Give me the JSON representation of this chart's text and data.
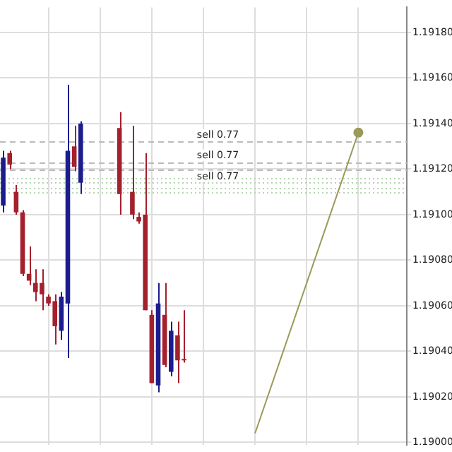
{
  "chart_data": {
    "type": "candlestick",
    "categories": [
      null,
      null,
      null,
      null,
      null,
      null,
      null,
      null,
      null,
      null,
      null,
      null,
      null,
      null,
      null,
      null,
      null,
      null,
      null,
      null,
      null,
      null,
      null,
      null,
      null,
      null,
      null,
      null,
      null,
      null,
      null,
      null,
      null,
      null,
      null,
      null,
      null,
      null,
      null,
      null,
      null,
      null,
      null,
      null,
      null,
      null,
      null,
      null,
      null,
      null,
      null,
      null,
      null,
      null,
      null,
      null,
      null,
      null,
      null,
      null,
      null,
      null,
      null
    ],
    "ohlc": [
      [
        1.19104,
        1.19128,
        1.19101,
        1.19125
      ],
      [
        1.19127,
        1.19128,
        1.1912,
        1.19122
      ],
      [
        1.1911,
        1.19113,
        1.191,
        1.19101
      ],
      [
        1.19101,
        1.19102,
        1.19073,
        1.19074
      ],
      [
        1.19074,
        1.19086,
        1.19069,
        1.19071
      ],
      [
        1.1907,
        1.19076,
        1.19062,
        1.19066
      ],
      [
        1.1907,
        1.19076,
        1.19058,
        1.19065
      ],
      [
        1.19064,
        1.19065,
        1.1906,
        1.19061
      ],
      [
        1.19062,
        1.19065,
        1.19043,
        1.19051
      ],
      [
        1.19049,
        1.19066,
        1.19045,
        1.19064
      ],
      [
        1.19061,
        1.19157,
        1.19037,
        1.19128
      ],
      [
        1.1913,
        1.19139,
        1.19119,
        1.19121
      ],
      [
        1.19114,
        1.19141,
        1.19109,
        1.1914
      ],
      null,
      null,
      null,
      null,
      null,
      [
        1.19138,
        1.19145,
        1.191,
        1.19109
      ],
      null,
      [
        1.1911,
        1.19139,
        1.19098,
        1.191
      ],
      [
        1.19099,
        1.19101,
        1.19096,
        1.19097
      ],
      [
        1.191,
        1.19127,
        1.19058,
        1.19058
      ],
      [
        1.19056,
        1.19058,
        1.19026,
        1.19026
      ],
      [
        1.19025,
        1.1907,
        1.19022,
        1.19061
      ],
      [
        1.19056,
        1.1907,
        1.19033,
        1.19034
      ],
      [
        1.19031,
        1.19053,
        1.19029,
        1.19049
      ],
      [
        1.19047,
        1.19053,
        1.19026,
        1.19036
      ],
      [
        1.19036,
        1.19058,
        1.19035,
        1.19036
      ],
      null,
      null,
      null,
      null,
      null,
      null,
      null,
      null,
      null,
      null,
      null,
      null,
      null,
      null,
      null,
      null,
      null,
      null,
      null,
      null,
      null,
      null,
      null,
      null,
      null,
      null,
      null,
      null,
      null,
      null,
      null,
      null,
      null,
      null
    ],
    "colors": [
      "#1c1c8e",
      "#a3202c",
      "#a3202c",
      "#a3202c",
      "#a3202c",
      "#a3202c",
      "#a3202c",
      "#a3202c",
      "#a3202c",
      "#1c1c8e",
      "#1c1c8e",
      "#a3202c",
      "#1c1c8e",
      null,
      null,
      null,
      null,
      null,
      "#a3202c",
      null,
      "#a3202c",
      "#a3202c",
      "#a3202c",
      "#a3202c",
      "#1c1c8e",
      "#a3202c",
      "#1c1c8e",
      "#a3202c",
      "#a3202c",
      null,
      null,
      null,
      null,
      null,
      null,
      null,
      null,
      null,
      null,
      null,
      null,
      null,
      null,
      null,
      null,
      null,
      null,
      null,
      null,
      null,
      null,
      null,
      null,
      null,
      null,
      null,
      null,
      null,
      null,
      null,
      null,
      null,
      null
    ],
    "series": [
      {
        "type": "line",
        "color": "#9a9a5a",
        "values": [
          null,
          null,
          null,
          null,
          null,
          null,
          null,
          null,
          null,
          null,
          null,
          null,
          null,
          null,
          null,
          null,
          null,
          null,
          null,
          null,
          null,
          null,
          null,
          null,
          null,
          null,
          null,
          null,
          null,
          null,
          null,
          null,
          null,
          null,
          null,
          null,
          null,
          null,
          null,
          1.19004,
          null,
          null,
          null,
          null,
          null,
          null,
          null,
          null,
          null,
          null,
          null,
          null,
          null,
          null,
          null,
          1.19136,
          null,
          null,
          null,
          null,
          null,
          null,
          null
        ]
      }
    ],
    "ylim": [
      1.18999,
      1.19191
    ],
    "yticks": [
      {
        "value": 1.19,
        "label": "1.19000"
      },
      {
        "value": 1.1902,
        "label": "1.19020"
      },
      {
        "value": 1.1904,
        "label": "1.19040"
      },
      {
        "value": 1.1906,
        "label": "1.19060"
      },
      {
        "value": 1.1908,
        "label": "1.19080"
      },
      {
        "value": 1.191,
        "label": "1.19100"
      },
      {
        "value": 1.1912,
        "label": "1.19120"
      },
      {
        "value": 1.1914,
        "label": "1.19140"
      },
      {
        "value": 1.1916,
        "label": "1.19160"
      },
      {
        "value": 1.1918,
        "label": "1.19180"
      }
    ],
    "ref_lines": [
      {
        "axis": "y",
        "value": 1.19132,
        "label": "sell 0.77",
        "color": "#bbbbbb",
        "line_style": "dashed"
      },
      {
        "axis": "y",
        "value": 1.19123,
        "label": "sell 0.77",
        "color": "#bbbbbb",
        "line_style": "dashed"
      },
      {
        "axis": "y",
        "value": 1.1912,
        "label": "sell 0.77",
        "color": "#bbbbbb",
        "line_style": "dashed"
      },
      {
        "axis": "y",
        "value": 1.19116,
        "color": "#b5d6b0",
        "line_style": "dotted"
      },
      {
        "axis": "y",
        "value": 1.19114,
        "color": "#b5d6b0",
        "line_style": "dotted"
      },
      {
        "axis": "y",
        "value": 1.19112,
        "color": "#b5d6b0",
        "line_style": "dotted"
      },
      {
        "axis": "y",
        "value": 1.1911,
        "color": "#b5d6b0",
        "line_style": "dotted"
      }
    ],
    "grid": true,
    "legend": false,
    "tick_labels": "y",
    "marker": "circle"
  }
}
